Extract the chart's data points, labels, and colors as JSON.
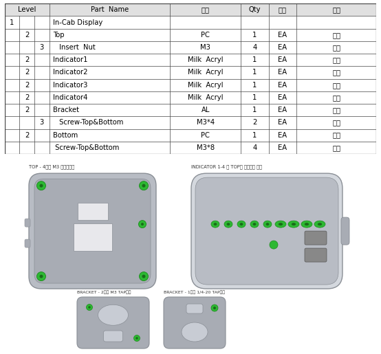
{
  "rows": [
    {
      "lv1": "1",
      "lv2": "",
      "lv3": "",
      "name": "In-Cab Display",
      "spec": "",
      "qty": "",
      "unit": "",
      "note": ""
    },
    {
      "lv1": "",
      "lv2": "2",
      "lv3": "",
      "name": "Top",
      "spec": "PC",
      "qty": "1",
      "unit": "EA",
      "note": "가공"
    },
    {
      "lv1": "",
      "lv2": "",
      "lv3": "3",
      "name": " Insert  Nut",
      "spec": "M3",
      "qty": "4",
      "unit": "EA",
      "note": "구매"
    },
    {
      "lv1": "",
      "lv2": "2",
      "lv3": "",
      "name": "Indicator1",
      "spec": "Milk  Acryl",
      "qty": "1",
      "unit": "EA",
      "note": "가공"
    },
    {
      "lv1": "",
      "lv2": "2",
      "lv3": "",
      "name": "Indicator2",
      "spec": "Milk  Acryl",
      "qty": "1",
      "unit": "EA",
      "note": "가공"
    },
    {
      "lv1": "",
      "lv2": "2",
      "lv3": "",
      "name": "Indicator3",
      "spec": "Milk  Acryl",
      "qty": "1",
      "unit": "EA",
      "note": "가공"
    },
    {
      "lv1": "",
      "lv2": "2",
      "lv3": "",
      "name": "Indicator4",
      "spec": "Milk  Acryl",
      "qty": "1",
      "unit": "EA",
      "note": "가공"
    },
    {
      "lv1": "",
      "lv2": "2",
      "lv3": "",
      "name": "Bracket",
      "spec": "AL",
      "qty": "1",
      "unit": "EA",
      "note": "가공"
    },
    {
      "lv1": "",
      "lv2": "",
      "lv3": "3",
      "name": " Screw-Top&Bottom",
      "spec": "M3*4",
      "qty": "2",
      "unit": "EA",
      "note": "구매"
    },
    {
      "lv1": "",
      "lv2": "2",
      "lv3": "",
      "name": "Bottom",
      "spec": "PC",
      "qty": "1",
      "unit": "EA",
      "note": "가공"
    },
    {
      "lv1": "",
      "lv2": "",
      "lv3": "",
      "name": " Screw-Top&Bottom",
      "spec": "M3*8",
      "qty": "4",
      "unit": "EA",
      "note": "구매"
    }
  ],
  "header_spec": "규격",
  "header_unit": "단위",
  "header_note": "비고",
  "bg_color": "#ffffff",
  "header_bg": "#e0e0e0",
  "line_color": "#444444",
  "font_size": 7.2,
  "label_top_left": "TOP - 4개소 M3 인서트너트",
  "label_top_right": "INDICATOR 1-4 의 TOP에 위치지정 맞춤",
  "label_bot_left": "BRACKET - 2개소 M3 TAP가공",
  "label_bot_right": "BRACKET - 1개소 1/4-20 TAP가공"
}
